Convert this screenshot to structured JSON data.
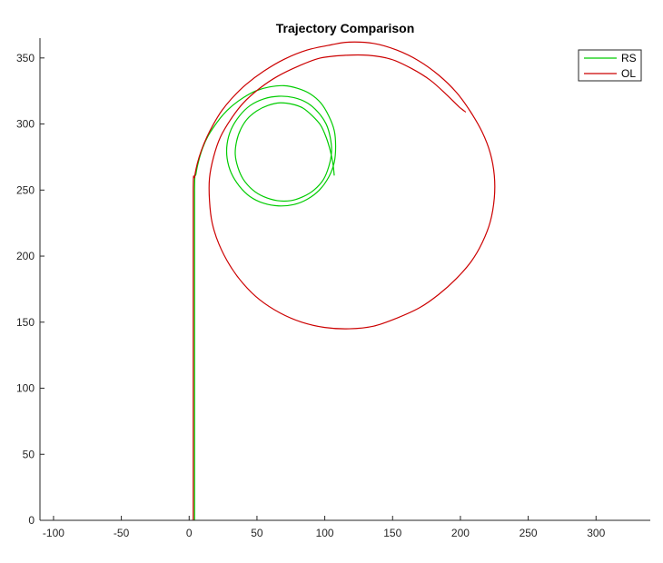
{
  "chart_data": {
    "type": "line",
    "title": "Trajectory Comparison",
    "xlabel": "",
    "ylabel": "",
    "xlim": [
      -110,
      340
    ],
    "ylim": [
      0,
      365
    ],
    "xticks": [
      "-100",
      "-50",
      "0",
      "50",
      "100",
      "150",
      "200",
      "250",
      "300"
    ],
    "yticks": [
      "0",
      "50",
      "100",
      "150",
      "200",
      "250",
      "300",
      "350"
    ],
    "grid": false,
    "legend_position": "top-right",
    "series": [
      {
        "name": "RS",
        "color": "#00cc00",
        "points": [
          [
            4,
            0
          ],
          [
            4,
            150
          ],
          [
            4,
            250
          ],
          [
            5,
            262
          ],
          [
            7,
            272
          ],
          [
            10,
            282
          ],
          [
            14,
            291
          ],
          [
            19,
            299
          ],
          [
            25,
            307
          ],
          [
            32,
            314
          ],
          [
            40,
            320
          ],
          [
            49,
            325
          ],
          [
            59,
            328
          ],
          [
            70,
            329
          ],
          [
            80,
            327
          ],
          [
            89,
            323
          ],
          [
            97,
            316
          ],
          [
            103,
            306
          ],
          [
            107,
            295
          ],
          [
            108,
            283
          ],
          [
            107,
            271
          ],
          [
            103,
            260
          ],
          [
            96,
            250
          ],
          [
            87,
            243
          ],
          [
            77,
            239
          ],
          [
            66,
            238
          ],
          [
            55,
            240
          ],
          [
            45,
            245
          ],
          [
            37,
            253
          ],
          [
            31,
            263
          ],
          [
            28,
            274
          ],
          [
            28,
            285
          ],
          [
            31,
            296
          ],
          [
            37,
            306
          ],
          [
            45,
            314
          ],
          [
            55,
            319
          ],
          [
            66,
            321
          ],
          [
            77,
            320
          ],
          [
            87,
            316
          ],
          [
            95,
            309
          ],
          [
            101,
            300
          ],
          [
            104,
            290
          ],
          [
            105,
            279
          ],
          [
            103,
            268
          ],
          [
            99,
            258
          ],
          [
            92,
            250
          ],
          [
            84,
            245
          ],
          [
            75,
            242
          ],
          [
            65,
            242
          ],
          [
            55,
            245
          ],
          [
            47,
            250
          ],
          [
            40,
            258
          ],
          [
            36,
            267
          ],
          [
            34,
            277
          ],
          [
            35,
            287
          ],
          [
            38,
            296
          ],
          [
            43,
            304
          ],
          [
            50,
            310
          ],
          [
            58,
            314
          ],
          [
            67,
            316
          ],
          [
            76,
            315
          ],
          [
            84,
            312
          ],
          [
            91,
            306
          ],
          [
            97,
            299
          ],
          [
            101,
            290
          ],
          [
            104,
            280
          ],
          [
            106,
            270
          ],
          [
            107,
            261
          ]
        ]
      },
      {
        "name": "OL",
        "color": "#cc0000",
        "points": [
          [
            3,
            0
          ],
          [
            3,
            150
          ],
          [
            3,
            250
          ],
          [
            4,
            260
          ],
          [
            6,
            270
          ],
          [
            9,
            280
          ],
          [
            13,
            290
          ],
          [
            18,
            300
          ],
          [
            24,
            310
          ],
          [
            32,
            320
          ],
          [
            42,
            330
          ],
          [
            55,
            340
          ],
          [
            70,
            349
          ],
          [
            87,
            356
          ],
          [
            105,
            360
          ],
          [
            118,
            362
          ],
          [
            136,
            361
          ],
          [
            153,
            356
          ],
          [
            169,
            348
          ],
          [
            184,
            337
          ],
          [
            197,
            324
          ],
          [
            207,
            310
          ],
          [
            216,
            294
          ],
          [
            222,
            278
          ],
          [
            225,
            261
          ],
          [
            225,
            244
          ],
          [
            222,
            226
          ],
          [
            216,
            210
          ],
          [
            208,
            196
          ],
          [
            197,
            183
          ],
          [
            184,
            171
          ],
          [
            170,
            161
          ],
          [
            153,
            153
          ],
          [
            136,
            147
          ],
          [
            118,
            145
          ],
          [
            100,
            146
          ],
          [
            83,
            150
          ],
          [
            67,
            157
          ],
          [
            52,
            167
          ],
          [
            40,
            179
          ],
          [
            30,
            193
          ],
          [
            22,
            209
          ],
          [
            17,
            225
          ],
          [
            15,
            242
          ],
          [
            15,
            259
          ],
          [
            18,
            275
          ],
          [
            23,
            290
          ],
          [
            31,
            304
          ],
          [
            40,
            316
          ],
          [
            52,
            327
          ],
          [
            65,
            336
          ],
          [
            81,
            344
          ],
          [
            97,
            350
          ],
          [
            115,
            352
          ],
          [
            132,
            352
          ],
          [
            149,
            349
          ],
          [
            164,
            342
          ],
          [
            178,
            333
          ],
          [
            190,
            322
          ],
          [
            199,
            313
          ],
          [
            204,
            309
          ]
        ]
      }
    ]
  }
}
